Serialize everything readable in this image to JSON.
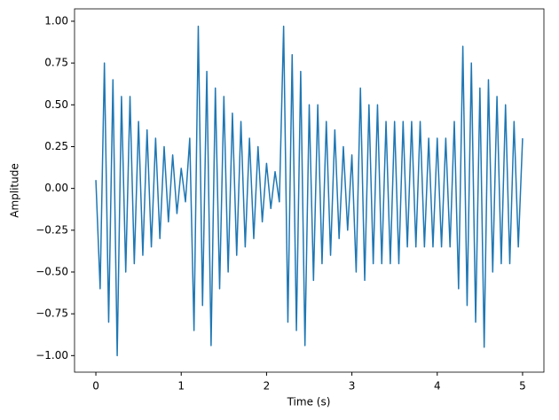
{
  "chart_data": {
    "type": "line",
    "xlabel": "Time (s)",
    "ylabel": "Amplitude",
    "x": [
      0,
      0.05,
      0.1,
      0.15,
      0.2,
      0.25,
      0.3,
      0.35,
      0.4,
      0.45,
      0.5,
      0.55,
      0.6,
      0.65,
      0.7,
      0.75,
      0.8,
      0.85,
      0.9,
      0.95,
      1,
      1.05,
      1.1,
      1.15,
      1.2,
      1.25,
      1.3,
      1.35,
      1.4,
      1.45,
      1.5,
      1.55,
      1.6,
      1.65,
      1.7,
      1.75,
      1.8,
      1.85,
      1.9,
      1.95,
      2,
      2.05,
      2.1,
      2.15,
      2.2,
      2.25,
      2.3,
      2.35,
      2.4,
      2.45,
      2.5,
      2.55,
      2.6,
      2.65,
      2.7,
      2.75,
      2.8,
      2.85,
      2.9,
      2.95,
      3,
      3.05,
      3.1,
      3.15,
      3.2,
      3.25,
      3.3,
      3.35,
      3.4,
      3.45,
      3.5,
      3.55,
      3.6,
      3.65,
      3.7,
      3.75,
      3.8,
      3.85,
      3.9,
      3.95,
      4,
      4.05,
      4.1,
      4.15,
      4.2,
      4.25,
      4.3,
      4.35,
      4.4,
      4.45,
      4.5,
      4.55,
      4.6,
      4.65,
      4.7,
      4.75,
      4.8,
      4.85,
      4.9,
      4.95,
      5
    ],
    "values": [
      0.05,
      -0.6,
      0.75,
      -0.8,
      0.65,
      -1.0,
      0.55,
      -0.5,
      0.55,
      -0.45,
      0.4,
      -0.4,
      0.35,
      -0.35,
      0.3,
      -0.3,
      0.25,
      -0.2,
      0.2,
      -0.15,
      0.12,
      -0.08,
      0.3,
      -0.85,
      0.97,
      -0.7,
      0.7,
      -0.94,
      0.6,
      -0.6,
      0.55,
      -0.5,
      0.45,
      -0.4,
      0.4,
      -0.35,
      0.3,
      -0.3,
      0.25,
      -0.2,
      0.15,
      -0.12,
      0.1,
      -0.08,
      0.97,
      -0.8,
      0.8,
      -0.85,
      0.7,
      -0.94,
      0.5,
      -0.55,
      0.5,
      -0.45,
      0.4,
      -0.4,
      0.35,
      -0.3,
      0.25,
      -0.25,
      0.2,
      -0.5,
      0.6,
      -0.55,
      0.5,
      -0.45,
      0.5,
      -0.45,
      0.4,
      -0.45,
      0.4,
      -0.45,
      0.4,
      -0.35,
      0.4,
      -0.35,
      0.4,
      -0.35,
      0.3,
      -0.35,
      0.3,
      -0.35,
      0.3,
      -0.35,
      0.4,
      -0.6,
      0.85,
      -0.7,
      0.75,
      -0.8,
      0.6,
      -0.95,
      0.65,
      -0.5,
      0.55,
      -0.45,
      0.5,
      -0.45,
      0.4,
      -0.35,
      0.3
    ],
    "color": "#1f77b4",
    "xlim": [
      -0.25,
      5.25
    ],
    "xticks": [
      0,
      1,
      2,
      3,
      4,
      5
    ],
    "ylim": [
      -1.099,
      1.074
    ],
    "yticks": [
      {
        "value": -1,
        "label": "−1.00"
      },
      {
        "value": -0.75,
        "label": "−0.75"
      },
      {
        "value": -0.5,
        "label": "−0.50"
      },
      {
        "value": -0.25,
        "label": "−0.25"
      },
      {
        "value": 0,
        "label": "0.00"
      },
      {
        "value": 0.25,
        "label": "0.25"
      },
      {
        "value": 0.5,
        "label": "0.50"
      },
      {
        "value": 0.75,
        "label": "0.75"
      },
      {
        "value": 1,
        "label": "1.00"
      }
    ]
  }
}
